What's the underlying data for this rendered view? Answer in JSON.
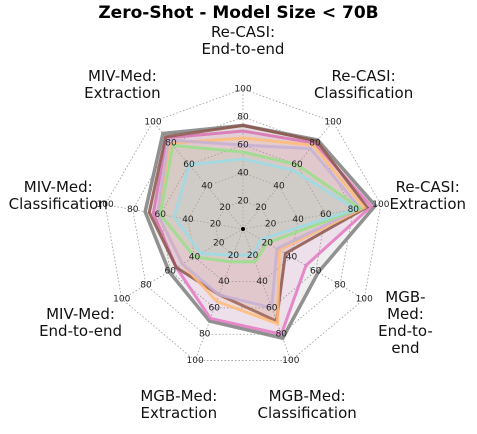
{
  "chart_data": {
    "type": "radar",
    "title": "Zero-Shot - Model Size < 70B",
    "categories": [
      "Re-CASI:\nEnd-to-end",
      "Re-CASI:\nClassification",
      "Re-CASI:\nExtraction",
      "MGB-Med:\nEnd-to-end",
      "MGB-Med:\nClassification",
      "MGB-Med:\nExtraction",
      "MIV-Med:\nEnd-to-end",
      "MIV-Med:\nClassification",
      "MIV-Med:\nExtraction"
    ],
    "rlim": [
      0,
      100
    ],
    "rticks": [
      20,
      40,
      60,
      80,
      100
    ],
    "grid": true,
    "series": [
      {
        "color": "#7f7f7f",
        "values": [
          74,
          83,
          96,
          62,
          83,
          70,
          61,
          71,
          89
        ]
      },
      {
        "color": "#e377c2",
        "values": [
          70,
          80,
          93,
          52,
          80,
          68,
          55,
          65,
          85
        ]
      },
      {
        "color": "#8c564b",
        "values": [
          74,
          82,
          90,
          35,
          70,
          50,
          55,
          68,
          86
        ]
      },
      {
        "color": "#ffbb78",
        "values": [
          65,
          78,
          88,
          30,
          72,
          55,
          50,
          62,
          80
        ]
      },
      {
        "color": "#c5b0d5",
        "values": [
          60,
          75,
          85,
          28,
          60,
          50,
          50,
          62,
          83
        ]
      },
      {
        "color": "#98df8a",
        "values": [
          55,
          60,
          85,
          20,
          25,
          25,
          40,
          60,
          78
        ]
      },
      {
        "color": "#9edae5",
        "values": [
          50,
          55,
          82,
          15,
          20,
          20,
          35,
          50,
          60
        ]
      }
    ]
  }
}
